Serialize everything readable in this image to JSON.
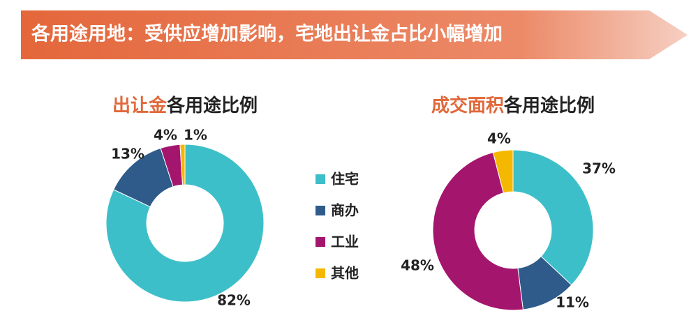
{
  "header": {
    "title": "各用途用地：受供应增加影响，宅地出让金占比小幅增加"
  },
  "legend": {
    "categories": [
      "住宅",
      "商办",
      "工业",
      "其他"
    ],
    "colors": [
      "#3dbfc9",
      "#2e5b8a",
      "#a4166e",
      "#f5b800"
    ]
  },
  "chart_data": [
    {
      "type": "donut",
      "title": [
        "出让金",
        "各用途比例"
      ],
      "values": [
        82,
        13,
        4,
        1
      ],
      "value_labels": [
        "82%",
        "13%",
        "4%",
        "1%"
      ]
    },
    {
      "type": "donut",
      "title": [
        "成交面积",
        "各用途比例"
      ],
      "values": [
        37,
        11,
        48,
        4
      ],
      "value_labels": [
        "37%",
        "11%",
        "48%",
        "4%"
      ]
    }
  ]
}
